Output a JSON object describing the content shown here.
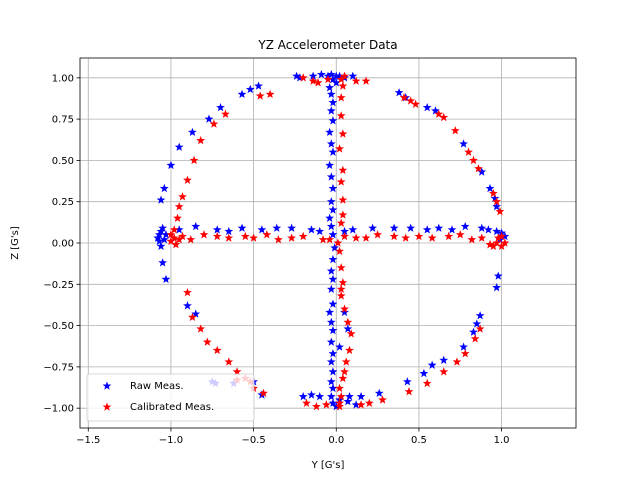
{
  "chart_data": {
    "type": "scatter",
    "title": "YZ Accelerometer Data",
    "xlabel": "Y [G's]",
    "ylabel": "Z [G's]",
    "xlim": [
      -1.55,
      1.45
    ],
    "ylim": [
      -1.12,
      1.12
    ],
    "xticks": [
      -1.5,
      -1.0,
      -0.5,
      0.0,
      0.5,
      1.0
    ],
    "xtick_labels": [
      "−1.5",
      "−1.0",
      "−0.5",
      "0.0",
      "0.5",
      "1.0"
    ],
    "yticks": [
      -1.0,
      -0.75,
      -0.5,
      -0.25,
      0.0,
      0.25,
      0.5,
      0.75,
      1.0
    ],
    "ytick_labels": [
      "−1.00",
      "−0.75",
      "−0.50",
      "−0.25",
      "0.00",
      "0.25",
      "0.50",
      "0.75",
      "1.00"
    ],
    "grid": true,
    "legend_position": "lower-left",
    "marker": "star",
    "series": [
      {
        "name": "Raw Meas.",
        "color": "#0000ff",
        "points": [
          [
            -1.07,
            0.05
          ],
          [
            -1.08,
            0.03
          ],
          [
            -1.06,
            0.07
          ],
          [
            -1.07,
            0.01
          ],
          [
            -1.05,
            0.09
          ],
          [
            -1.04,
            0.02
          ],
          [
            -1.06,
            -0.02
          ],
          [
            -1.03,
            0.05
          ],
          [
            -1.05,
            -0.12
          ],
          [
            -1.03,
            -0.22
          ],
          [
            -1.06,
            0.26
          ],
          [
            -1.04,
            0.33
          ],
          [
            -1.0,
            0.47
          ],
          [
            -0.95,
            0.58
          ],
          [
            -0.87,
            0.67
          ],
          [
            -0.77,
            0.75
          ],
          [
            -0.7,
            0.82
          ],
          [
            -0.57,
            0.9
          ],
          [
            -0.52,
            0.93
          ],
          [
            -0.47,
            0.95
          ],
          [
            -0.24,
            1.01
          ],
          [
            -0.22,
            1.0
          ],
          [
            -0.14,
            1.01
          ],
          [
            -0.09,
            1.02
          ],
          [
            -0.05,
            1.01
          ],
          [
            -0.03,
            1.02
          ],
          [
            0.0,
            1.01
          ],
          [
            -0.02,
            0.99
          ],
          [
            0.0,
            0.97
          ],
          [
            0.02,
            1.01
          ],
          [
            -0.04,
            0.94
          ],
          [
            -0.03,
            0.9
          ],
          [
            -0.02,
            0.85
          ],
          [
            -0.03,
            0.8
          ],
          [
            -0.02,
            0.74
          ],
          [
            -0.04,
            0.67
          ],
          [
            -0.03,
            0.6
          ],
          [
            -0.02,
            0.55
          ],
          [
            -0.04,
            0.47
          ],
          [
            -0.03,
            0.4
          ],
          [
            -0.02,
            0.33
          ],
          [
            -0.03,
            0.25
          ],
          [
            -0.02,
            0.2
          ],
          [
            -0.04,
            0.15
          ],
          [
            -0.03,
            0.1
          ],
          [
            -0.02,
            0.05
          ],
          [
            -0.01,
            -0.03
          ],
          [
            -0.02,
            -0.1
          ],
          [
            -0.03,
            -0.17
          ],
          [
            -0.02,
            -0.22
          ],
          [
            -0.03,
            -0.28
          ],
          [
            -0.02,
            -0.37
          ],
          [
            -0.04,
            -0.42
          ],
          [
            -0.03,
            -0.48
          ],
          [
            -0.02,
            -0.53
          ],
          [
            -0.03,
            -0.6
          ],
          [
            -0.02,
            -0.67
          ],
          [
            -0.03,
            -0.72
          ],
          [
            -0.02,
            -0.78
          ],
          [
            -0.03,
            -0.84
          ],
          [
            -0.02,
            -0.88
          ],
          [
            -0.03,
            -0.93
          ],
          [
            -0.02,
            -0.97
          ],
          [
            0.0,
            -0.99
          ],
          [
            0.02,
            -0.95
          ],
          [
            -0.1,
            -0.93
          ],
          [
            -0.15,
            -0.92
          ],
          [
            -0.2,
            -0.93
          ],
          [
            0.08,
            -0.93
          ],
          [
            0.15,
            -0.93
          ],
          [
            0.26,
            -0.91
          ],
          [
            0.43,
            -0.84
          ],
          [
            0.53,
            -0.79
          ],
          [
            0.58,
            -0.74
          ],
          [
            0.65,
            -0.71
          ],
          [
            0.77,
            -0.63
          ],
          [
            0.83,
            -0.54
          ],
          [
            0.85,
            -0.49
          ],
          [
            0.87,
            -0.44
          ],
          [
            0.97,
            -0.27
          ],
          [
            0.98,
            -0.2
          ],
          [
            0.97,
            0.22
          ],
          [
            0.96,
            0.27
          ],
          [
            0.93,
            0.33
          ],
          [
            0.88,
            0.43
          ],
          [
            0.77,
            0.6
          ],
          [
            0.6,
            0.8
          ],
          [
            0.55,
            0.82
          ],
          [
            0.42,
            0.88
          ],
          [
            0.38,
            0.91
          ],
          [
            0.1,
            1.01
          ],
          [
            0.05,
            1.0
          ],
          [
            -0.65,
            0.07
          ],
          [
            -0.72,
            0.08
          ],
          [
            -0.85,
            0.1
          ],
          [
            -0.95,
            0.08
          ],
          [
            -0.57,
            0.09
          ],
          [
            -0.45,
            0.08
          ],
          [
            -0.36,
            0.09
          ],
          [
            -0.27,
            0.09
          ],
          [
            -0.15,
            0.08
          ],
          [
            -0.1,
            0.07
          ],
          [
            0.05,
            0.07
          ],
          [
            0.1,
            0.08
          ],
          [
            0.22,
            0.09
          ],
          [
            0.35,
            0.09
          ],
          [
            0.45,
            0.09
          ],
          [
            0.55,
            0.08
          ],
          [
            0.62,
            0.09
          ],
          [
            0.7,
            0.08
          ],
          [
            0.78,
            0.1
          ],
          [
            0.88,
            0.09
          ],
          [
            0.92,
            0.08
          ],
          [
            0.97,
            0.07
          ],
          [
            1.0,
            0.06
          ],
          [
            1.02,
            0.04
          ],
          [
            0.99,
            0.02
          ],
          [
            -0.73,
            -0.85
          ],
          [
            -0.62,
            -0.85
          ],
          [
            -0.5,
            -0.84
          ],
          [
            -0.45,
            -0.92
          ],
          [
            -0.75,
            -0.84
          ],
          [
            0.07,
            -0.96
          ],
          [
            0.12,
            -0.98
          ],
          [
            0.05,
            -0.42
          ],
          [
            0.07,
            -0.52
          ],
          [
            0.02,
            -0.63
          ],
          [
            -0.85,
            -0.43
          ],
          [
            -0.9,
            -0.38
          ]
        ]
      },
      {
        "name": "Calibrated Meas.",
        "color": "#ff0000",
        "points": [
          [
            -0.98,
            0.03
          ],
          [
            -1.0,
            0.01
          ],
          [
            -0.97,
            -0.01
          ],
          [
            -0.95,
            0.02
          ],
          [
            -0.93,
            0.04
          ],
          [
            -1.0,
            0.05
          ],
          [
            -0.98,
            0.08
          ],
          [
            -0.96,
            0.15
          ],
          [
            -0.95,
            0.22
          ],
          [
            -0.93,
            0.28
          ],
          [
            -0.9,
            0.38
          ],
          [
            -0.86,
            0.5
          ],
          [
            -0.82,
            0.62
          ],
          [
            -0.74,
            0.72
          ],
          [
            -0.67,
            0.78
          ],
          [
            -0.46,
            0.89
          ],
          [
            -0.4,
            0.9
          ],
          [
            -0.2,
            1.0
          ],
          [
            -0.14,
            0.98
          ],
          [
            -0.11,
            0.97
          ],
          [
            0.03,
            0.99
          ],
          [
            0.05,
            1.01
          ],
          [
            0.12,
            0.98
          ],
          [
            0.18,
            0.98
          ],
          [
            0.45,
            0.86
          ],
          [
            0.41,
            0.88
          ],
          [
            0.48,
            0.84
          ],
          [
            0.62,
            0.78
          ],
          [
            0.65,
            0.76
          ],
          [
            0.72,
            0.68
          ],
          [
            0.8,
            0.55
          ],
          [
            0.83,
            0.5
          ],
          [
            0.86,
            0.45
          ],
          [
            0.95,
            0.3
          ],
          [
            0.97,
            0.25
          ],
          [
            0.99,
            0.19
          ],
          [
            1.0,
            0.04
          ],
          [
            0.98,
            0.03
          ],
          [
            1.0,
            -0.02
          ],
          [
            0.97,
            0.0
          ],
          [
            0.95,
            -0.02
          ],
          [
            0.93,
            -0.01
          ],
          [
            0.88,
            0.03
          ],
          [
            0.82,
            0.02
          ],
          [
            0.75,
            0.05
          ],
          [
            0.68,
            0.04
          ],
          [
            0.58,
            0.03
          ],
          [
            0.5,
            0.04
          ],
          [
            0.42,
            0.03
          ],
          [
            0.35,
            0.04
          ],
          [
            0.25,
            0.05
          ],
          [
            0.18,
            0.03
          ],
          [
            0.12,
            0.03
          ],
          [
            0.05,
            0.04
          ],
          [
            0.01,
            0.0
          ],
          [
            -0.04,
            0.02
          ],
          [
            -0.08,
            0.02
          ],
          [
            -0.2,
            0.04
          ],
          [
            -0.27,
            0.03
          ],
          [
            -0.35,
            0.02
          ],
          [
            -0.42,
            0.05
          ],
          [
            -0.5,
            0.03
          ],
          [
            -0.55,
            0.04
          ],
          [
            -0.65,
            0.03
          ],
          [
            -0.72,
            0.04
          ],
          [
            -0.8,
            0.05
          ],
          [
            -0.88,
            0.02
          ],
          [
            0.04,
            0.95
          ],
          [
            0.03,
            0.88
          ],
          [
            0.03,
            0.77
          ],
          [
            0.04,
            0.66
          ],
          [
            0.02,
            0.57
          ],
          [
            0.04,
            0.44
          ],
          [
            0.03,
            0.37
          ],
          [
            0.04,
            0.26
          ],
          [
            0.04,
            0.17
          ],
          [
            0.03,
            0.12
          ],
          [
            0.02,
            -0.05
          ],
          [
            0.03,
            -0.15
          ],
          [
            0.04,
            -0.24
          ],
          [
            0.03,
            -0.32
          ],
          [
            0.05,
            -0.4
          ],
          [
            0.07,
            -0.48
          ],
          [
            0.09,
            -0.55
          ],
          [
            0.08,
            -0.65
          ],
          [
            0.06,
            -0.72
          ],
          [
            0.05,
            -0.78
          ],
          [
            0.04,
            -0.82
          ],
          [
            0.02,
            -0.88
          ],
          [
            0.03,
            -0.93
          ],
          [
            0.02,
            -0.99
          ],
          [
            -0.06,
            -0.98
          ],
          [
            -0.12,
            -0.99
          ],
          [
            -0.18,
            -0.97
          ],
          [
            0.15,
            -0.98
          ],
          [
            0.2,
            -0.97
          ],
          [
            0.28,
            -0.95
          ],
          [
            0.44,
            -0.9
          ],
          [
            0.55,
            -0.85
          ],
          [
            0.65,
            -0.78
          ],
          [
            0.73,
            -0.72
          ],
          [
            0.78,
            -0.67
          ],
          [
            0.84,
            -0.58
          ],
          [
            0.87,
            -0.52
          ],
          [
            -0.9,
            -0.3
          ],
          [
            -0.87,
            -0.45
          ],
          [
            -0.82,
            -0.52
          ],
          [
            -0.78,
            -0.6
          ],
          [
            -0.72,
            -0.65
          ],
          [
            -0.65,
            -0.72
          ],
          [
            -0.6,
            -0.78
          ],
          [
            -0.55,
            -0.82
          ],
          [
            -0.5,
            -0.88
          ],
          [
            -0.44,
            -0.91
          ],
          [
            -0.6,
            -0.83
          ],
          [
            -0.52,
            -0.84
          ],
          [
            0.93,
            -0.01
          ],
          [
            1.02,
            0.0
          ],
          [
            0.02,
            -0.97
          ],
          [
            -0.05,
            0.99
          ],
          [
            0.03,
            -0.28
          ]
        ]
      }
    ]
  }
}
